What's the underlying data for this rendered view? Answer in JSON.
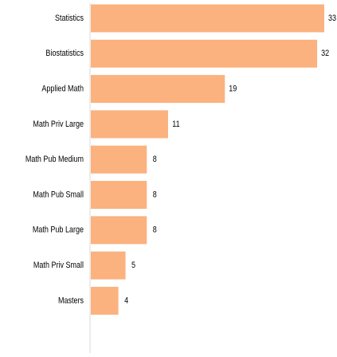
{
  "chart_data": {
    "type": "bar",
    "orientation": "horizontal",
    "categories": [
      "Statistics",
      "Biostatistics",
      "Applied Math",
      "Math Priv Large",
      "Math Pub Medium",
      "Math Pub Small",
      "Math Pub Large",
      "Math Priv Small",
      "Masters"
    ],
    "values": [
      33,
      32,
      19,
      11,
      8,
      8,
      8,
      5,
      4
    ],
    "title": "",
    "xlabel": "",
    "ylabel": "",
    "xlim": [
      0,
      33
    ],
    "grid": false,
    "legend": "none",
    "data_labels": true,
    "colors": {
      "bar": "#fbb27f",
      "axis": "#d9d9d9",
      "text": "#000000"
    }
  }
}
